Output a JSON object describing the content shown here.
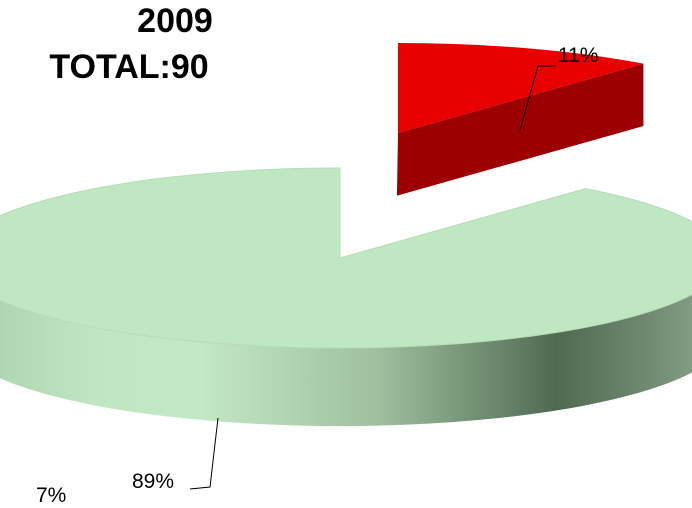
{
  "chart_data": {
    "type": "pie",
    "style": "3d-exploded",
    "title_lines": [
      "2009",
      "TOTAL:90"
    ],
    "slices": [
      {
        "label": "89%",
        "value": 89,
        "color": "#bfe8c2"
      },
      {
        "label": "11%",
        "value": 11,
        "color": "#e80000"
      }
    ],
    "extra_labels": [
      "7%"
    ]
  }
}
